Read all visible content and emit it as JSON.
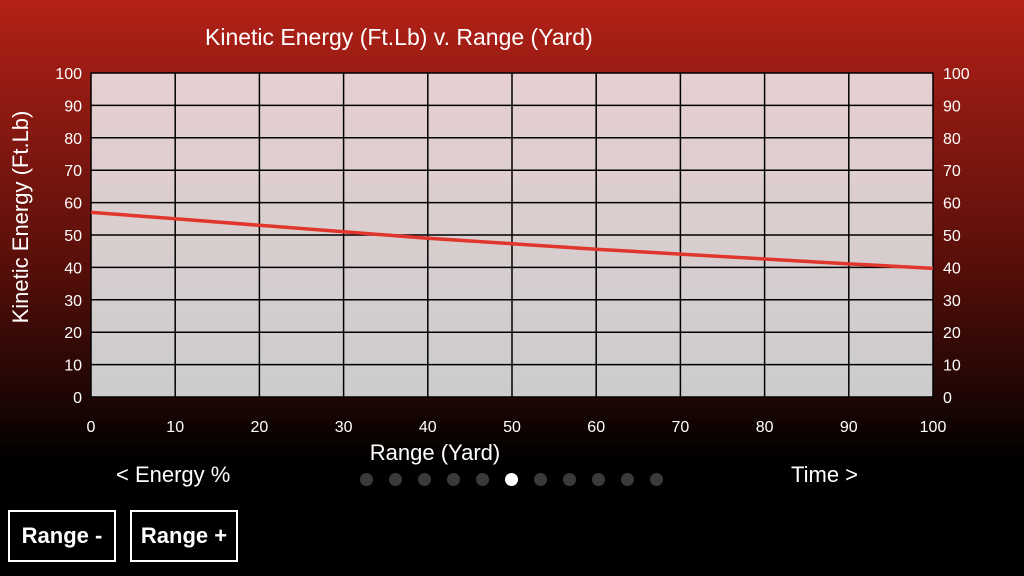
{
  "chart_data": {
    "type": "line",
    "title": "Kinetic Energy (Ft.Lb) v. Range (Yard)",
    "xlabel": "Range (Yard)",
    "ylabel": "Kinetic Energy (Ft.Lb)",
    "xlim": [
      0,
      100
    ],
    "ylim": [
      0,
      100
    ],
    "x_ticks": [
      0,
      10,
      20,
      30,
      40,
      50,
      60,
      70,
      80,
      90,
      100
    ],
    "y_ticks": [
      0,
      10,
      20,
      30,
      40,
      50,
      60,
      70,
      80,
      90,
      100
    ],
    "grid": true,
    "series": [
      {
        "color": "#e0362c",
        "x": [
          0,
          10,
          20,
          30,
          40,
          50,
          60,
          70,
          80,
          90,
          100
        ],
        "y": [
          57,
          55,
          53,
          51,
          49,
          47.3,
          45.6,
          44.1,
          42.6,
          41.1,
          39.7
        ]
      }
    ]
  },
  "navigation": {
    "prev_label": "< Energy %",
    "next_label": "Time >",
    "page_count": 11,
    "active_page": 6
  },
  "buttons": {
    "range_minus": "Range -",
    "range_plus": "Range +"
  },
  "colors": {
    "plot_top": "#e6cfd0",
    "plot_bottom": "#cccccc",
    "grid": "#000000",
    "line": "#e0362c"
  }
}
